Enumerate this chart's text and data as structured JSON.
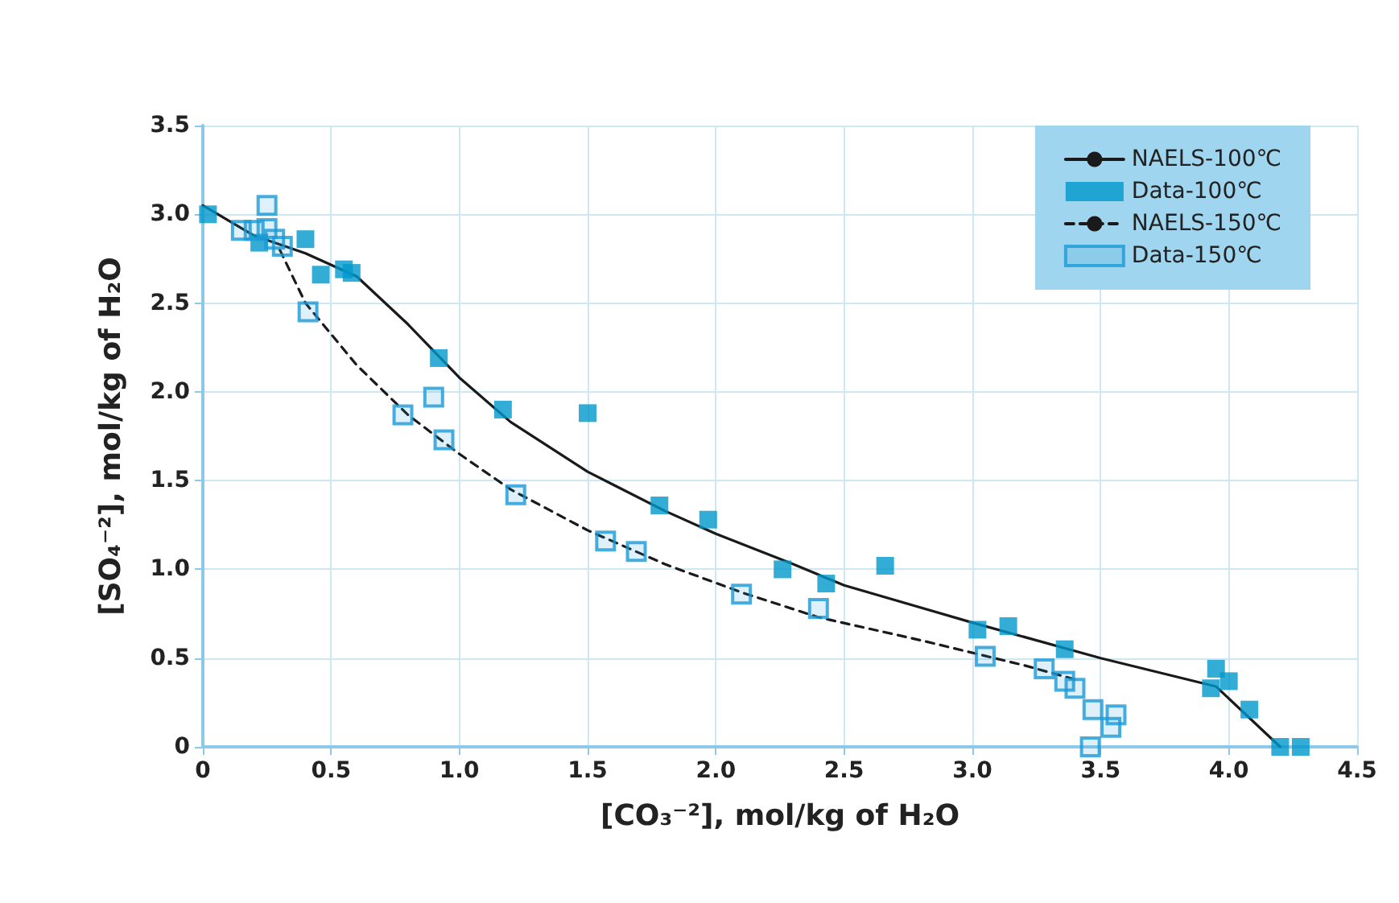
{
  "chart_data": {
    "type": "scatter",
    "xlabel": "[CO₃⁻²], mol/kg of H₂O",
    "ylabel": "[SO₄⁻²], mol/kg of H₂O",
    "xlim": [
      0,
      4.5
    ],
    "xticks": [
      0,
      0.5,
      {
        "value": 1,
        "label": "1.0"
      },
      1.5,
      {
        "value": 2,
        "label": "2.0"
      },
      2.5,
      {
        "value": 3,
        "label": "3.0"
      },
      3.5,
      {
        "value": 4,
        "label": "4.0"
      },
      4.5
    ],
    "ylim": [
      0,
      3.5
    ],
    "yticks": [
      0,
      0.5,
      {
        "value": 1,
        "label": "1.0"
      },
      1.5,
      {
        "value": 2,
        "label": "2.0"
      },
      2.5,
      {
        "value": 3,
        "label": "3.0"
      },
      3.5
    ],
    "grid": true,
    "legend": "top right",
    "series": [
      {
        "name": "NAELS-100℃",
        "type": "line",
        "line_style": "solid",
        "marker": "none",
        "color": "#1a1a1a",
        "x": [
          0,
          0.2,
          0.4,
          0.6,
          0.8,
          1.0,
          1.2,
          1.5,
          1.8,
          2.0,
          2.3,
          2.5,
          3.0,
          3.5,
          3.95,
          4.2
        ],
        "values": [
          3.05,
          2.88,
          2.78,
          2.65,
          2.38,
          2.08,
          1.83,
          1.55,
          1.33,
          1.2,
          1.03,
          0.91,
          0.7,
          0.5,
          0.34,
          0.0
        ]
      },
      {
        "name": "Data-100℃",
        "marker": "square",
        "color": "#0099cc",
        "x": [
          0.02,
          0.22,
          0.4,
          0.46,
          0.55,
          0.58,
          0.92,
          1.17,
          1.5,
          1.78,
          1.97,
          2.26,
          2.43,
          2.66,
          3.02,
          3.14,
          3.36,
          3.93,
          3.95,
          4.0,
          4.08,
          4.2,
          4.28
        ],
        "values": [
          3.0,
          2.84,
          2.86,
          2.66,
          2.69,
          2.67,
          2.19,
          1.9,
          1.88,
          1.36,
          1.28,
          1.0,
          0.92,
          1.02,
          0.66,
          0.68,
          0.55,
          0.33,
          0.44,
          0.37,
          0.21,
          0.0,
          0.0
        ]
      },
      {
        "name": "NAELS-150℃",
        "type": "line",
        "line_style": "dashed",
        "marker": "none",
        "color": "#1a1a1a",
        "x": [
          0.3,
          0.4,
          0.6,
          0.8,
          1.0,
          1.2,
          1.5,
          1.8,
          2.1,
          2.4,
          2.8,
          3.2,
          3.4
        ],
        "values": [
          2.8,
          2.5,
          2.15,
          1.87,
          1.65,
          1.45,
          1.22,
          1.03,
          0.87,
          0.73,
          0.6,
          0.46,
          0.38
        ]
      },
      {
        "name": "Data-150℃",
        "marker": "square",
        "color": "#1a9ad6",
        "x": [
          0.15,
          0.2,
          0.25,
          0.25,
          0.28,
          0.31,
          0.41,
          0.78,
          0.9,
          0.94,
          1.22,
          1.57,
          1.69,
          2.1,
          2.4,
          3.05,
          3.28,
          3.36,
          3.4,
          3.47,
          3.46,
          3.54,
          3.56
        ],
        "values": [
          2.91,
          2.91,
          3.05,
          2.92,
          2.86,
          2.82,
          2.45,
          1.87,
          1.97,
          1.73,
          1.42,
          1.16,
          1.1,
          0.86,
          0.78,
          0.51,
          0.44,
          0.37,
          0.33,
          0.21,
          0.0,
          0.11,
          0.18
        ]
      }
    ]
  }
}
